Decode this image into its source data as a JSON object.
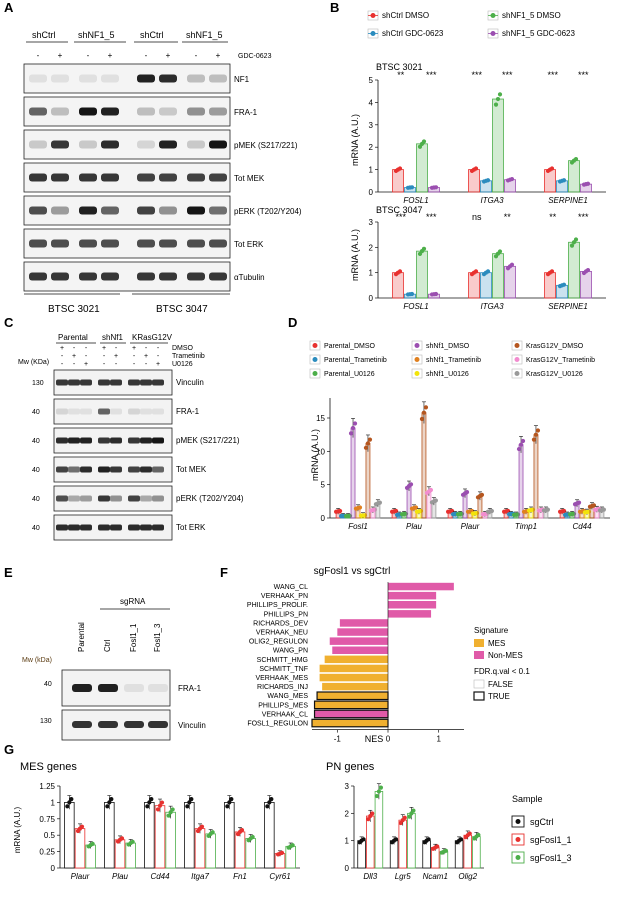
{
  "panels": {
    "A": {
      "letter": "A",
      "groups": [
        "shCtrl",
        "shNF1_5",
        "shCtrl",
        "shNF1_5"
      ],
      "treatment_label": "GDC-0623",
      "treatment_signs": [
        "-",
        "+",
        "-",
        "+",
        "-",
        "+",
        "-",
        "+"
      ],
      "blots": [
        "NF1",
        "FRA-1",
        "pMEK (S217/221)",
        "Tot MEK",
        "pERK (T202/Y204)",
        "Tot ERK",
        "αTubulin"
      ],
      "cell_lines": [
        "BTSC 3021",
        "BTSC 3047"
      ]
    },
    "B": {
      "letter": "B",
      "legend": [
        "shCtrl DMSO",
        "shCtrl GDC-0623",
        "shNF1_5 DMSO",
        "shNF1_5 GDC-0623"
      ],
      "ylabel": "mRNA (A.U.)"
    },
    "C": {
      "letter": "C",
      "groups": [
        "Parental",
        "shNf1",
        "KRasG12V"
      ],
      "conditions": [
        "DMSO",
        "Trametinib",
        "U0126"
      ],
      "mw_label": "Mw (KDa)",
      "mw": [
        "130",
        "40",
        "40",
        "40",
        "40",
        "40"
      ],
      "blots": [
        "Vinculin",
        "FRA-1",
        "pMEK (S217/221)",
        "Tot MEK",
        "pERK (T202/Y204)",
        "Tot ERK"
      ]
    },
    "D": {
      "letter": "D",
      "legend": [
        "Parental_DMSO",
        "Parental_Trametinib",
        "Parental_U0126",
        "shNf1_DMSO",
        "shNf1_Trametinib",
        "shNf1_U0126",
        "KrasG12V_DMSO",
        "KrasG12V_Trametinib",
        "KrasG12V_U0126"
      ],
      "ylabel": "mRNA (A.U.)"
    },
    "E": {
      "letter": "E",
      "sgrna_label": "sgRNA",
      "lanes": [
        "Parental",
        "Ctrl",
        "Fosl1_1",
        "Fosl1_3"
      ],
      "mw_label": "Mw (kDa)",
      "mw": [
        "40",
        "130"
      ],
      "blots": [
        "FRA-1",
        "Vinculin"
      ]
    },
    "F": {
      "letter": "F",
      "title": "sgFosl1 vs sgCtrl",
      "xlabel": "NES",
      "legend_signature_title": "Signature",
      "legend_signature": [
        "MES",
        "Non-MES"
      ],
      "legend_fdr_title": "FDR.q.val < 0.1",
      "legend_fdr": [
        "FALSE",
        "TRUE"
      ]
    },
    "G": {
      "letter": "G",
      "mes_title": "MES genes",
      "pn_title": "PN genes",
      "ylabel": "mRNA (A.U.)",
      "legend_title": "Sample",
      "legend": [
        "sgCtrl",
        "sgFosl1_1",
        "sgFosl1_3"
      ]
    }
  },
  "colors": {
    "red": "#e8312f",
    "blue": "#2b8cbe",
    "green": "#4daf4a",
    "purple": "#9b4fb0",
    "orange": "#e08020",
    "yellow": "#f2e40a",
    "brown": "#b5561f",
    "pink": "#f28ccf",
    "grey": "#999999",
    "mes": "#f0b030",
    "nonmes": "#e05aa8"
  },
  "chart_data": [
    {
      "id": "B-top",
      "type": "bar",
      "title": "BTSC 3021",
      "ylabel": "mRNA (A.U.)",
      "ylim": [
        0,
        5
      ],
      "yticks": [
        0,
        1,
        2,
        3,
        4,
        5
      ],
      "categories": [
        "FOSL1",
        "ITGA3",
        "SERPINE1"
      ],
      "series": [
        {
          "name": "shCtrl DMSO",
          "values": [
            1.0,
            1.0,
            1.0
          ]
        },
        {
          "name": "shCtrl GDC-0623",
          "values": [
            0.2,
            0.5,
            0.5
          ]
        },
        {
          "name": "shNF1_5 DMSO",
          "values": [
            2.15,
            4.15,
            1.4
          ]
        },
        {
          "name": "shNF1_5 GDC-0623",
          "values": [
            0.2,
            0.55,
            0.35
          ]
        }
      ],
      "significance": [
        "**",
        "***",
        "***",
        "***",
        "***",
        "***"
      ]
    },
    {
      "id": "B-bottom",
      "type": "bar",
      "title": "BTSC 3047",
      "ylabel": "mRNA (A.U.)",
      "ylim": [
        0,
        3
      ],
      "yticks": [
        0,
        1,
        2,
        3
      ],
      "categories": [
        "FOSL1",
        "ITGA3",
        "SERPINE1"
      ],
      "series": [
        {
          "name": "shCtrl DMSO",
          "values": [
            1.0,
            1.0,
            1.0
          ]
        },
        {
          "name": "shCtrl GDC-0623",
          "values": [
            0.15,
            1.0,
            0.5
          ]
        },
        {
          "name": "shNF1_5 DMSO",
          "values": [
            1.85,
            1.75,
            2.2
          ]
        },
        {
          "name": "shNF1_5 GDC-0623",
          "values": [
            0.15,
            1.25,
            1.05
          ]
        }
      ],
      "significance": [
        "***",
        "***",
        "ns",
        "**",
        "**",
        "***"
      ]
    },
    {
      "id": "D",
      "type": "bar",
      "ylabel": "mRNA (A.U.)",
      "ylim": [
        0,
        18
      ],
      "yticks": [
        0,
        5,
        10,
        15
      ],
      "categories": [
        "Fosl1",
        "Plau",
        "Plaur",
        "Timp1",
        "Cd44"
      ],
      "series": [
        {
          "name": "Parental_DMSO",
          "values": [
            1.0,
            1.0,
            1.0,
            1.0,
            1.0
          ]
        },
        {
          "name": "Parental_Trametinib",
          "values": [
            0.3,
            0.5,
            0.6,
            0.6,
            0.5
          ]
        },
        {
          "name": "Parental_U0126",
          "values": [
            0.3,
            0.6,
            0.6,
            0.5,
            0.6
          ]
        },
        {
          "name": "shNf1_DMSO",
          "values": [
            13.5,
            4.8,
            3.7,
            11.0,
            2.2
          ]
        },
        {
          "name": "shNf1_Trametinib",
          "values": [
            1.5,
            1.5,
            1.0,
            1.0,
            1.0
          ]
        },
        {
          "name": "shNf1_U0126",
          "values": [
            0.4,
            1.0,
            0.7,
            1.2,
            0.9
          ]
        },
        {
          "name": "KrasG12V_DMSO",
          "values": [
            11.2,
            15.8,
            3.3,
            12.5,
            1.8
          ]
        },
        {
          "name": "KrasG12V_Trametinib",
          "values": [
            1.2,
            4.0,
            0.6,
            1.2,
            1.3
          ]
        },
        {
          "name": "KrasG12V_U0126",
          "values": [
            2.2,
            2.5,
            1.0,
            1.2,
            1.2
          ]
        }
      ]
    },
    {
      "id": "F",
      "type": "bar",
      "title": "sgFosl1 vs sgCtrl",
      "xlabel": "NES",
      "xlim": [
        -1.5,
        1.5
      ],
      "xticks": [
        -1,
        0,
        1
      ],
      "categories": [
        "WANG_CL",
        "VERHAAK_PN",
        "PHILLIPS_PROLIF.",
        "PHILLIPS_PN",
        "RICHARDS_DEV",
        "VERHAAK_NEU",
        "OLIG2_REGULON",
        "WANG_PN",
        "SCHMITT_HMG",
        "SCHMITT_TNF",
        "VERHAAK_MES",
        "RICHARDS_INJ",
        "WANG_MES",
        "PHILLIPS_MES",
        "VERHAAK_CL",
        "FOSL1_REGULON"
      ],
      "values": [
        1.3,
        0.95,
        0.95,
        0.85,
        -0.95,
        -1.0,
        -1.15,
        -1.1,
        -1.25,
        -1.35,
        -1.35,
        -1.3,
        -1.4,
        -1.45,
        -1.45,
        -1.5
      ],
      "signature": [
        "Non-MES",
        "Non-MES",
        "Non-MES",
        "Non-MES",
        "Non-MES",
        "Non-MES",
        "Non-MES",
        "Non-MES",
        "MES",
        "MES",
        "MES",
        "MES",
        "MES",
        "MES",
        "Non-MES",
        "MES"
      ],
      "fdr_sig": [
        false,
        false,
        false,
        false,
        false,
        false,
        false,
        false,
        false,
        false,
        false,
        false,
        true,
        true,
        true,
        true
      ]
    },
    {
      "id": "G-MES",
      "type": "bar",
      "title": "MES genes",
      "ylabel": "mRNA (A.U.)",
      "ylim": [
        0,
        1.25
      ],
      "yticks": [
        0,
        0.25,
        0.5,
        0.75,
        1.0,
        1.25
      ],
      "categories": [
        "Plaur",
        "Plau",
        "Cd44",
        "Itga7",
        "Fn1",
        "Cyr61"
      ],
      "series": [
        {
          "name": "sgCtrl",
          "values": [
            1.0,
            1.0,
            1.0,
            1.0,
            1.0,
            1.0
          ]
        },
        {
          "name": "sgFosl1_1",
          "values": [
            0.6,
            0.43,
            0.95,
            0.6,
            0.55,
            0.22
          ]
        },
        {
          "name": "sgFosl1_3",
          "values": [
            0.35,
            0.38,
            0.85,
            0.52,
            0.45,
            0.33
          ]
        }
      ]
    },
    {
      "id": "G-PN",
      "type": "bar",
      "title": "PN genes",
      "ylim": [
        0,
        3
      ],
      "yticks": [
        0,
        1,
        2,
        3
      ],
      "categories": [
        "Dll3",
        "Lgr5",
        "Ncam1",
        "Olig2"
      ],
      "series": [
        {
          "name": "sgCtrl",
          "values": [
            1.0,
            1.0,
            1.0,
            1.0
          ]
        },
        {
          "name": "sgFosl1_1",
          "values": [
            1.9,
            1.75,
            0.75,
            1.2
          ]
        },
        {
          "name": "sgFosl1_3",
          "values": [
            2.8,
            2.0,
            0.6,
            1.15
          ]
        }
      ]
    }
  ]
}
